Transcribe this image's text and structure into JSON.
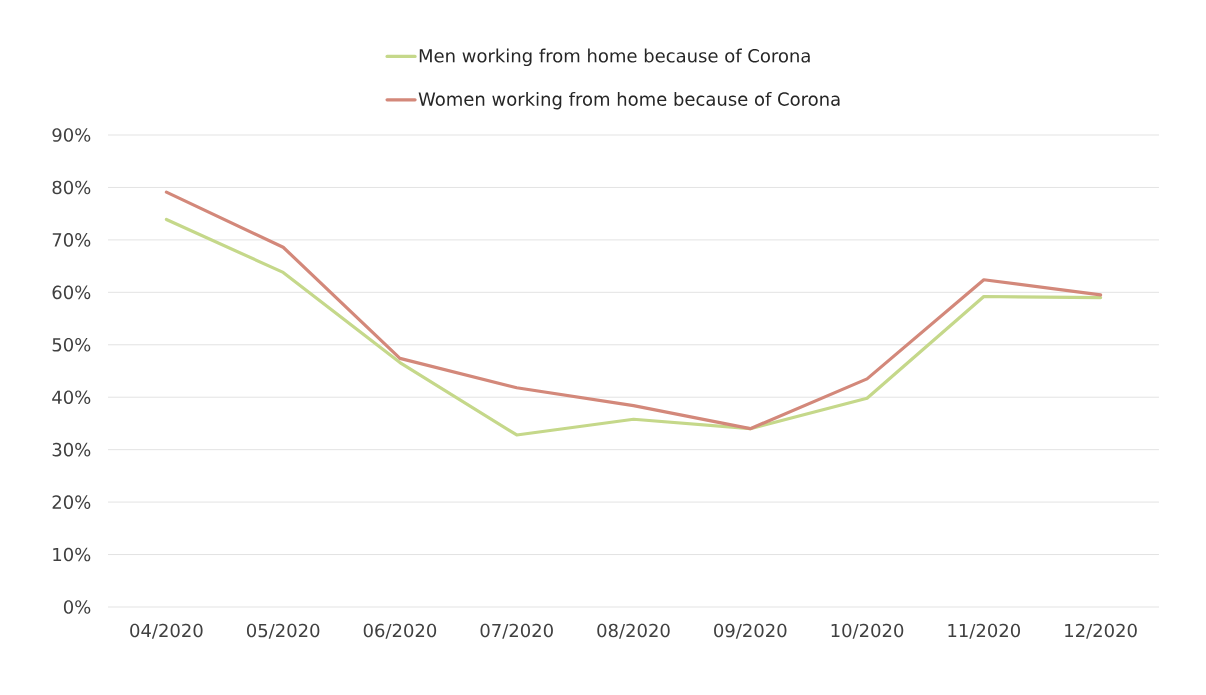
{
  "chart_data": {
    "type": "line",
    "categories": [
      "04/2020",
      "05/2020",
      "06/2020",
      "07/2020",
      "08/2020",
      "09/2020",
      "10/2020",
      "11/2020",
      "12/2020"
    ],
    "series": [
      {
        "name": "Men working from home because of Corona",
        "color": "#c5d88a",
        "values": [
          73.9,
          63.8,
          46.6,
          32.8,
          35.8,
          34.0,
          39.8,
          59.2,
          59.0
        ]
      },
      {
        "name": "Women working from home because of Corona",
        "color": "#d3887a",
        "values": [
          79.1,
          68.6,
          47.4,
          41.8,
          38.4,
          34.0,
          43.5,
          62.4,
          59.5
        ]
      }
    ],
    "ylim": [
      0,
      90
    ],
    "yticks": [
      {
        "value": 0,
        "label": "0%"
      },
      {
        "value": 10,
        "label": "10%"
      },
      {
        "value": 20,
        "label": "20%"
      },
      {
        "value": 30,
        "label": "30%"
      },
      {
        "value": 40,
        "label": "40%"
      },
      {
        "value": 50,
        "label": "50%"
      },
      {
        "value": 60,
        "label": "60%"
      },
      {
        "value": 70,
        "label": "70%"
      },
      {
        "value": 80,
        "label": "80%"
      },
      {
        "value": 90,
        "label": "90%"
      }
    ],
    "grid": "y",
    "legend": "top"
  }
}
